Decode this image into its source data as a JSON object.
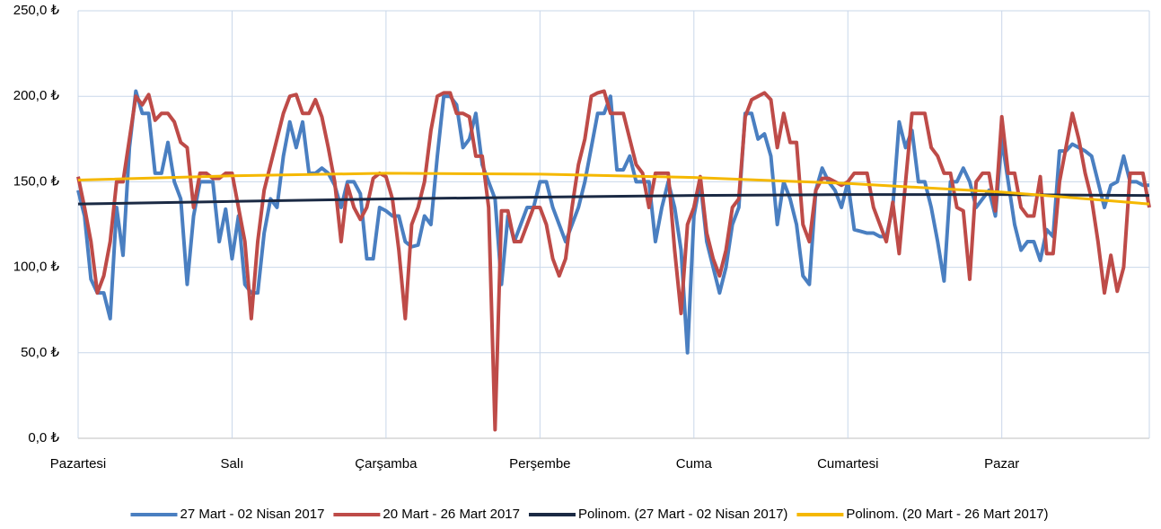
{
  "chart_data": {
    "type": "line",
    "categories": [
      "Pazartesi",
      null,
      null,
      null,
      null,
      null,
      null,
      null,
      null,
      null,
      null,
      null,
      null,
      null,
      null,
      null,
      null,
      null,
      null,
      null,
      null,
      null,
      null,
      null,
      "Salı",
      null,
      null,
      null,
      null,
      null,
      null,
      null,
      null,
      null,
      null,
      null,
      null,
      null,
      null,
      null,
      null,
      null,
      null,
      null,
      null,
      null,
      null,
      null,
      "Çarşamba",
      null,
      null,
      null,
      null,
      null,
      null,
      null,
      null,
      null,
      null,
      null,
      null,
      null,
      null,
      null,
      null,
      null,
      null,
      null,
      null,
      null,
      null,
      null,
      "Perşembe",
      null,
      null,
      null,
      null,
      null,
      null,
      null,
      null,
      null,
      null,
      null,
      null,
      null,
      null,
      null,
      null,
      null,
      null,
      null,
      null,
      null,
      null,
      null,
      "Cuma",
      null,
      null,
      null,
      null,
      null,
      null,
      null,
      null,
      null,
      null,
      null,
      null,
      null,
      null,
      null,
      null,
      null,
      null,
      null,
      null,
      null,
      null,
      null,
      "Cumartesi",
      null,
      null,
      null,
      null,
      null,
      null,
      null,
      null,
      null,
      null,
      null,
      null,
      null,
      null,
      null,
      null,
      null,
      null,
      null,
      null,
      null,
      null,
      null,
      "Pazar",
      null,
      null,
      null,
      null,
      null,
      null,
      null,
      null,
      null,
      null,
      null,
      null,
      null,
      null,
      null,
      null,
      null,
      null,
      null,
      null,
      null,
      null,
      null
    ],
    "series": [
      {
        "name": "27 Mart - 02 Nisan 2017",
        "color": "#4a7fc1",
        "values": [
          145,
          130,
          93,
          85,
          85,
          70,
          135,
          107,
          170,
          203,
          190,
          190,
          155,
          155,
          173,
          150,
          140,
          90,
          130,
          150,
          150,
          150,
          115,
          134,
          105,
          130,
          90,
          85,
          85,
          120,
          140,
          135,
          165,
          185,
          170,
          185,
          155,
          155,
          158,
          155,
          148,
          135,
          150,
          150,
          143,
          105,
          105,
          135,
          133,
          130,
          130,
          115,
          112,
          113,
          130,
          125,
          165,
          200,
          200,
          195,
          170,
          175,
          190,
          160,
          150,
          140,
          90,
          130,
          115,
          125,
          135,
          135,
          150,
          150,
          135,
          125,
          115,
          125,
          135,
          150,
          170,
          190,
          190,
          200,
          157,
          157,
          165,
          150,
          150,
          150,
          115,
          135,
          150,
          135,
          110,
          50,
          130,
          150,
          115,
          100,
          85,
          100,
          125,
          135,
          190,
          190,
          175,
          178,
          165,
          125,
          150,
          140,
          125,
          95,
          90,
          145,
          158,
          150,
          145,
          135,
          150,
          122,
          121,
          120,
          120,
          118,
          118,
          135,
          185,
          170,
          180,
          150,
          150,
          135,
          115,
          92,
          150,
          150,
          158,
          150,
          135,
          140,
          145,
          130,
          175,
          150,
          125,
          110,
          115,
          115,
          104,
          122,
          118,
          168,
          168,
          172,
          170,
          168,
          165,
          150,
          135,
          148,
          150,
          165,
          150,
          150,
          148,
          148
        ]
      },
      {
        "name": "20 Mart - 26 Mart 2017",
        "color": "#be4b48",
        "values": [
          153,
          135,
          115,
          85,
          95,
          115,
          150,
          150,
          175,
          200,
          195,
          201,
          186,
          190,
          190,
          185,
          173,
          170,
          135,
          155,
          155,
          152,
          152,
          155,
          155,
          135,
          115,
          70,
          115,
          145,
          160,
          175,
          190,
          200,
          201,
          190,
          190,
          198,
          188,
          170,
          150,
          115,
          148,
          135,
          128,
          135,
          152,
          155,
          153,
          140,
          110,
          70,
          125,
          135,
          150,
          180,
          200,
          202,
          202,
          190,
          190,
          188,
          165,
          165,
          135,
          5,
          133,
          133,
          115,
          115,
          125,
          135,
          135,
          125,
          105,
          95,
          105,
          135,
          160,
          175,
          200,
          202,
          203,
          190,
          190,
          190,
          175,
          160,
          155,
          135,
          155,
          155,
          155,
          110,
          73,
          125,
          135,
          153,
          120,
          105,
          95,
          110,
          135,
          140,
          188,
          198,
          200,
          202,
          198,
          170,
          190,
          173,
          173,
          125,
          115,
          145,
          152,
          152,
          150,
          148,
          150,
          155,
          155,
          155,
          135,
          125,
          115,
          138,
          108,
          150,
          190,
          190,
          190,
          170,
          165,
          155,
          155,
          135,
          133,
          93,
          150,
          155,
          155,
          133,
          188,
          155,
          155,
          135,
          130,
          130,
          153,
          108,
          108,
          150,
          170,
          190,
          175,
          155,
          140,
          115,
          85,
          107,
          86,
          100,
          155,
          155,
          155,
          135
        ]
      },
      {
        "name": "Polinom. (27 Mart - 02 Nisan 2017)",
        "color": "#1b2a44",
        "x": [
          0,
          24,
          48,
          72,
          96,
          120,
          144,
          167
        ],
        "values": [
          137,
          138.5,
          140,
          141,
          142,
          142.5,
          142.5,
          142
        ]
      },
      {
        "name": "Polinom. (20 Mart - 26 Mart 2017)",
        "color": "#f5b800",
        "x": [
          0,
          24,
          48,
          72,
          96,
          120,
          144,
          167
        ],
        "values": [
          151,
          153.5,
          155,
          154.5,
          152.5,
          149,
          144,
          137
        ]
      }
    ],
    "ylim": [
      0,
      250
    ],
    "yticks": [
      {
        "value": 0,
        "label": "0,0 ₺"
      },
      {
        "value": 50,
        "label": "50,0 ₺"
      },
      {
        "value": 100,
        "label": "100,0 ₺"
      },
      {
        "value": 150,
        "label": "150,0 ₺"
      },
      {
        "value": 200,
        "label": "200,0 ₺"
      },
      {
        "value": 250,
        "label": "250,0 ₺"
      }
    ],
    "grid": true,
    "legend": "bottom"
  }
}
